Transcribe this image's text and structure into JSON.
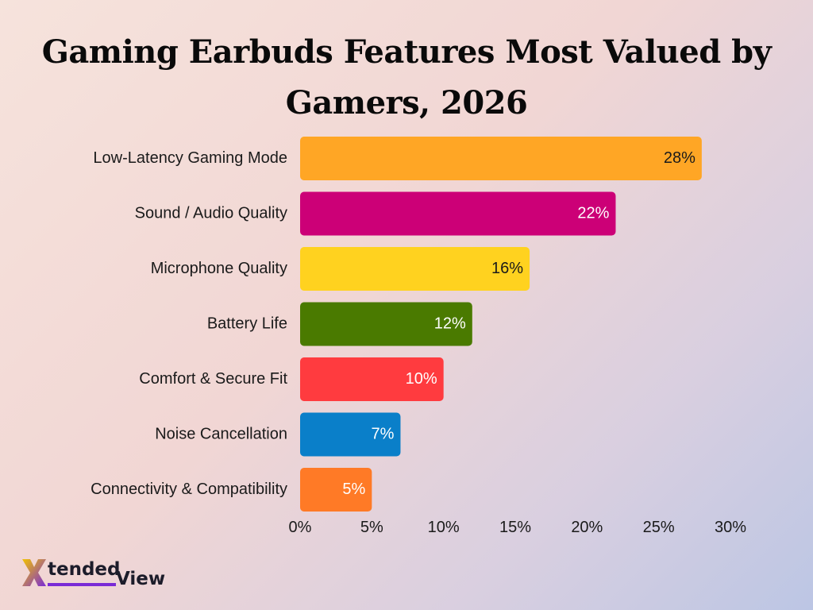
{
  "title": "Gaming Earbuds Features Most Valued by Gamers, 2026",
  "brand": {
    "mark": "X",
    "word1": "tended",
    "word2": "View"
  },
  "chart_data": {
    "type": "bar",
    "orientation": "horizontal",
    "title": "Gaming Earbuds Features Most Valued by Gamers, 2026",
    "categories": [
      "Low-Latency Gaming Mode",
      "Sound / Audio Quality",
      "Microphone Quality",
      "Battery Life",
      "Comfort & Secure Fit",
      "Noise Cancellation",
      "Connectivity & Compatibility"
    ],
    "values": [
      28,
      22,
      16,
      12,
      10,
      7,
      5
    ],
    "value_labels": [
      "28%",
      "22%",
      "16%",
      "12%",
      "10%",
      "7%",
      "5%"
    ],
    "colors": [
      "#ffa625",
      "#cc0077",
      "#ffd21f",
      "#4a7a00",
      "#ff3b3f",
      "#0a7fc9",
      "#ff7a26"
    ],
    "label_colors": [
      "#1a1a1a",
      "#ffffff",
      "#1a1a1a",
      "#ffffff",
      "#ffffff",
      "#ffffff",
      "#ffffff"
    ],
    "xlim": [
      0,
      30
    ],
    "xticks": [
      0,
      5,
      10,
      15,
      20,
      25,
      30
    ],
    "xtick_labels": [
      "0%",
      "5%",
      "10%",
      "15%",
      "20%",
      "25%",
      "30%"
    ],
    "grid": false,
    "legend": "none"
  }
}
